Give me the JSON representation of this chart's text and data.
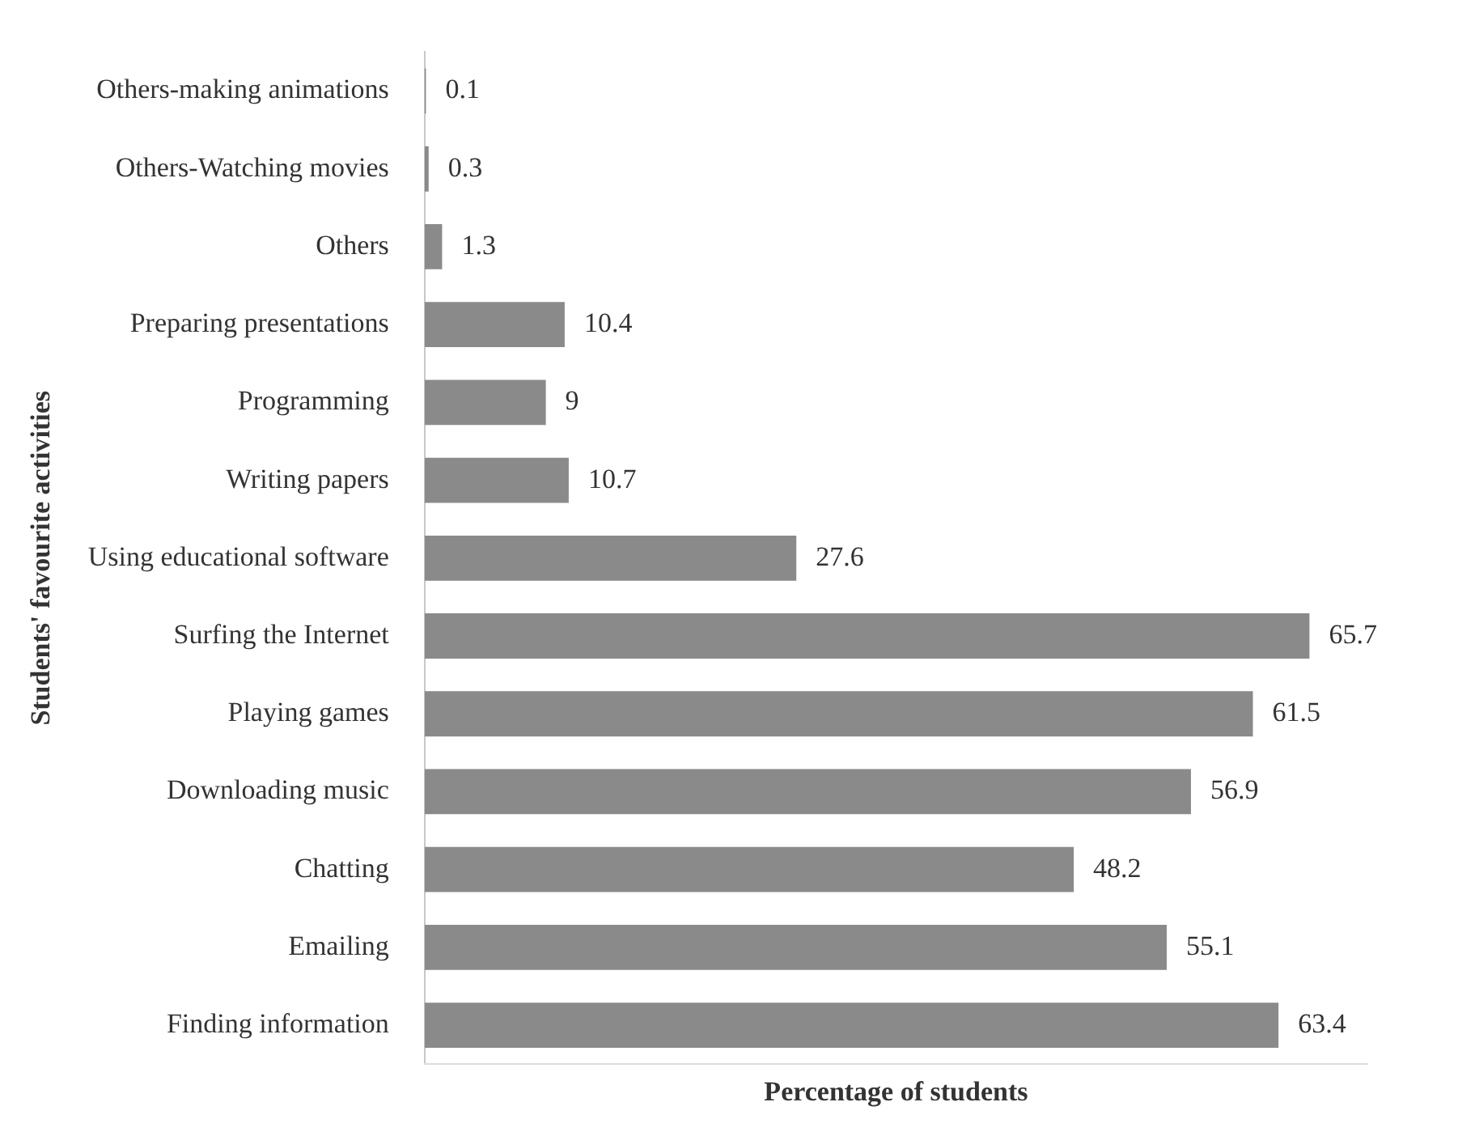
{
  "chart_data": {
    "type": "bar",
    "orientation": "horizontal",
    "categories": [
      "Others-making animations",
      "Others-Watching movies",
      "Others",
      "Preparing presentations",
      "Programming",
      "Writing papers",
      "Using educational software",
      "Surfing the Internet",
      "Playing games",
      "Downloading music",
      "Chatting",
      "Emailing",
      "Finding information"
    ],
    "values": [
      0.1,
      0.3,
      1.3,
      10.4,
      9,
      10.7,
      27.6,
      65.7,
      61.5,
      56.9,
      48.2,
      55.1,
      63.4
    ],
    "color": "#8a8a8a",
    "xlabel": "Percentage of students",
    "ylabel": "Students' favourite activities",
    "data_labels": true,
    "tick_labels": "y"
  }
}
